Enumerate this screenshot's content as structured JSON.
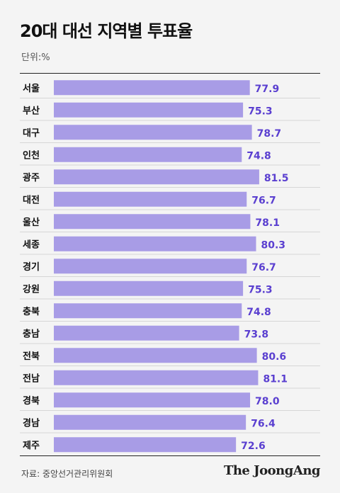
{
  "title": "20대 대선 지역별 투표율",
  "unit_label": "단위:%",
  "source": "자료: 중앙선거관리위원회",
  "brand": "The JoongAng",
  "colors": {
    "bar": "#a89ce6",
    "value_text": "#5a3fd0",
    "row_line": "#d6d6d6",
    "background": "#f4f4f4"
  },
  "chart_data": {
    "type": "bar",
    "orientation": "horizontal",
    "categories": [
      "서울",
      "부산",
      "대구",
      "인천",
      "광주",
      "대전",
      "울산",
      "세종",
      "경기",
      "강원",
      "충북",
      "충남",
      "전북",
      "전남",
      "경북",
      "경남",
      "제주"
    ],
    "values": [
      77.9,
      75.3,
      78.7,
      74.8,
      81.5,
      76.7,
      78.1,
      80.3,
      76.7,
      75.3,
      74.8,
      73.8,
      80.6,
      81.1,
      78.0,
      76.4,
      72.6
    ],
    "value_labels": [
      "77.9",
      "75.3",
      "78.7",
      "74.8",
      "81.5",
      "76.7",
      "78.1",
      "80.3",
      "76.7",
      "75.3",
      "74.8",
      "73.8",
      "80.6",
      "81.1",
      "78.0",
      "76.4",
      "72.6"
    ],
    "title": "20대 대선 지역별 투표율",
    "xlabel": "",
    "ylabel": "",
    "xlim": [
      0,
      100
    ],
    "grid": false,
    "legend": "none"
  }
}
